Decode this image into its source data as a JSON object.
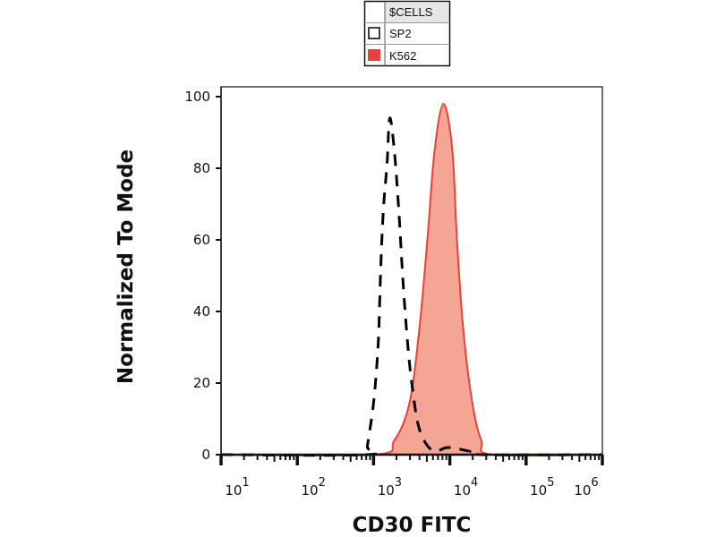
{
  "chart_data": {
    "type": "area",
    "title": "",
    "xlabel": "CD30 FITC",
    "ylabel": "Normalized To Mode",
    "x_scale": "log",
    "xlim": [
      10,
      1000000
    ],
    "ylim": [
      0,
      100
    ],
    "x_ticks": [
      10,
      100,
      1000,
      10000,
      100000,
      1000000
    ],
    "x_tick_labels": [
      {
        "base": "10",
        "exp": "1"
      },
      {
        "base": "10",
        "exp": "2"
      },
      {
        "base": "10",
        "exp": "3"
      },
      {
        "base": "10",
        "exp": "4"
      },
      {
        "base": "10",
        "exp": "5"
      },
      {
        "base": "10",
        "exp": "6"
      }
    ],
    "y_ticks": [
      0,
      20,
      40,
      60,
      80,
      100
    ],
    "grid": false,
    "legend": {
      "placement": "top",
      "header": "$CELLS"
    },
    "series": [
      {
        "name": "SP2",
        "style": "dashed-outline",
        "color": "#000000",
        "x": [
          10,
          800,
          830,
          1000,
          1150,
          1240,
          1350,
          1500,
          1630,
          1870,
          2130,
          2440,
          2800,
          3210,
          3880,
          5080,
          6660,
          9470,
          17700,
          25800,
          1000000
        ],
        "y": [
          0,
          0,
          2.5,
          14.5,
          31,
          52,
          69,
          81,
          94,
          85,
          69,
          48,
          31,
          19,
          8,
          2.5,
          1,
          2,
          1,
          0,
          0
        ]
      },
      {
        "name": "K562",
        "style": "filled",
        "color": "#e8413a",
        "fill": "#f4a594",
        "x": [
          10,
          1000,
          1870,
          2960,
          3980,
          5080,
          6310,
          8280,
          10800,
          12400,
          15000,
          19700,
          25800,
          36700,
          1000000
        ],
        "y": [
          0,
          0,
          4,
          14.5,
          35,
          60,
          85,
          98,
          85,
          60,
          35,
          14.5,
          4,
          0,
          0
        ]
      }
    ]
  }
}
